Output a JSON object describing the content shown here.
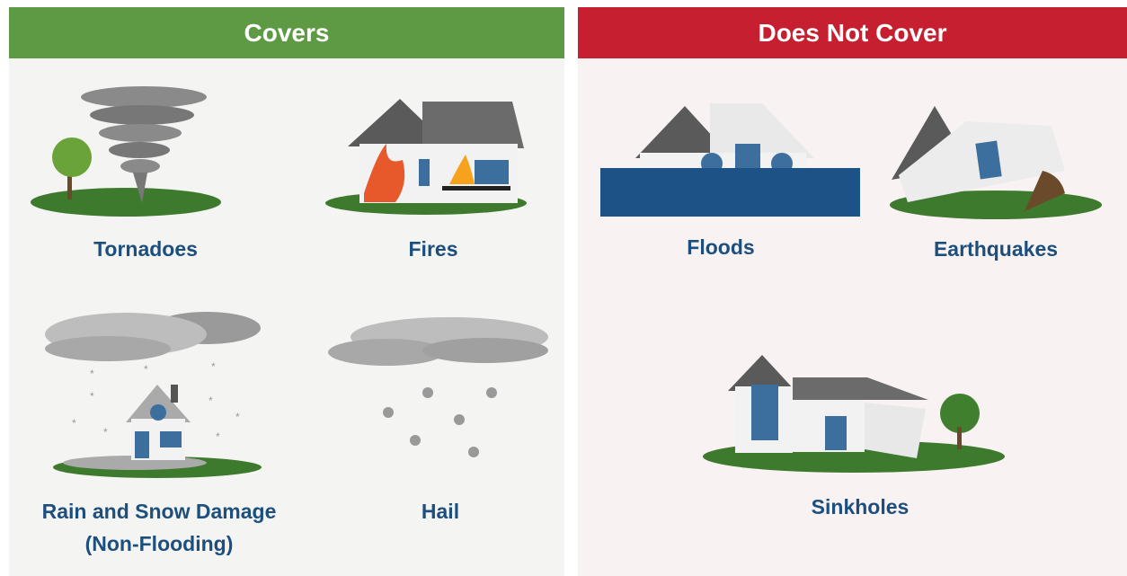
{
  "covers": {
    "title": "Covers",
    "items": [
      "Tornadoes",
      "Fires",
      "Rain and Snow Damage (Non-Flooding)",
      "Hail"
    ]
  },
  "does_not_cover": {
    "title": "Does Not Cover",
    "items": [
      "Floods",
      "Earthquakes",
      "Sinkholes"
    ]
  }
}
